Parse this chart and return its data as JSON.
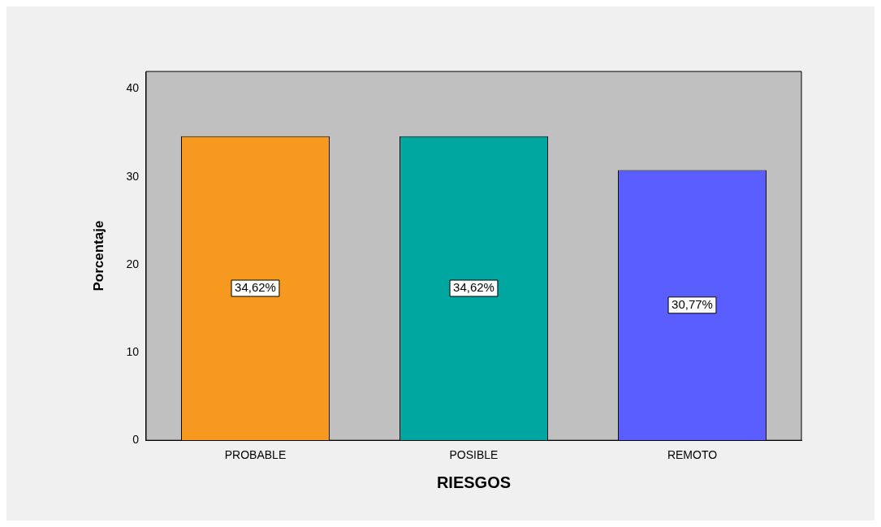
{
  "chart_data": {
    "type": "bar",
    "xlabel": "RIESGOS",
    "ylabel": "Porcentaje",
    "categories": [
      "PROBABLE",
      "POSIBLE",
      "REMOTO"
    ],
    "values": [
      34.62,
      34.62,
      30.77
    ],
    "colors": [
      "#f7991f",
      "#00a6a0",
      "#5a5eff"
    ],
    "value_labels": [
      "34,62%",
      "34,62%",
      "30,77%"
    ],
    "ylim": [
      0,
      42
    ],
    "yticks": [
      0,
      10,
      20,
      30,
      40
    ]
  }
}
